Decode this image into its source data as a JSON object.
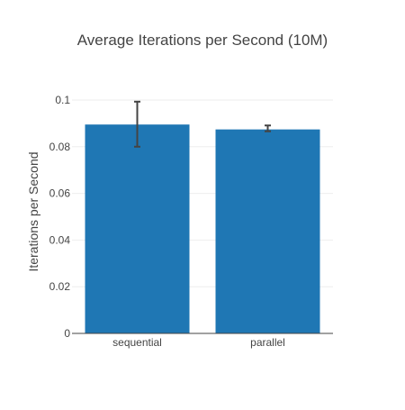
{
  "chart_data": {
    "type": "bar",
    "title": "Average Iterations per Second (10M)",
    "xlabel": "",
    "ylabel": "Iterations per Second",
    "categories": [
      "sequential",
      "parallel"
    ],
    "values": [
      0.0895,
      0.0874
    ],
    "error_upper": [
      0.0993,
      0.0891
    ],
    "error_lower": [
      0.08,
      0.0866
    ],
    "ylim": [
      0,
      0.1
    ],
    "yticks": [
      0,
      0.02,
      0.04,
      0.06,
      0.08,
      0.1
    ],
    "ytick_labels": [
      "0",
      "0.02",
      "0.04",
      "0.06",
      "0.08",
      "0.1"
    ],
    "grid": true,
    "bar_color": "#1f77b4",
    "error_color": "#444444"
  }
}
